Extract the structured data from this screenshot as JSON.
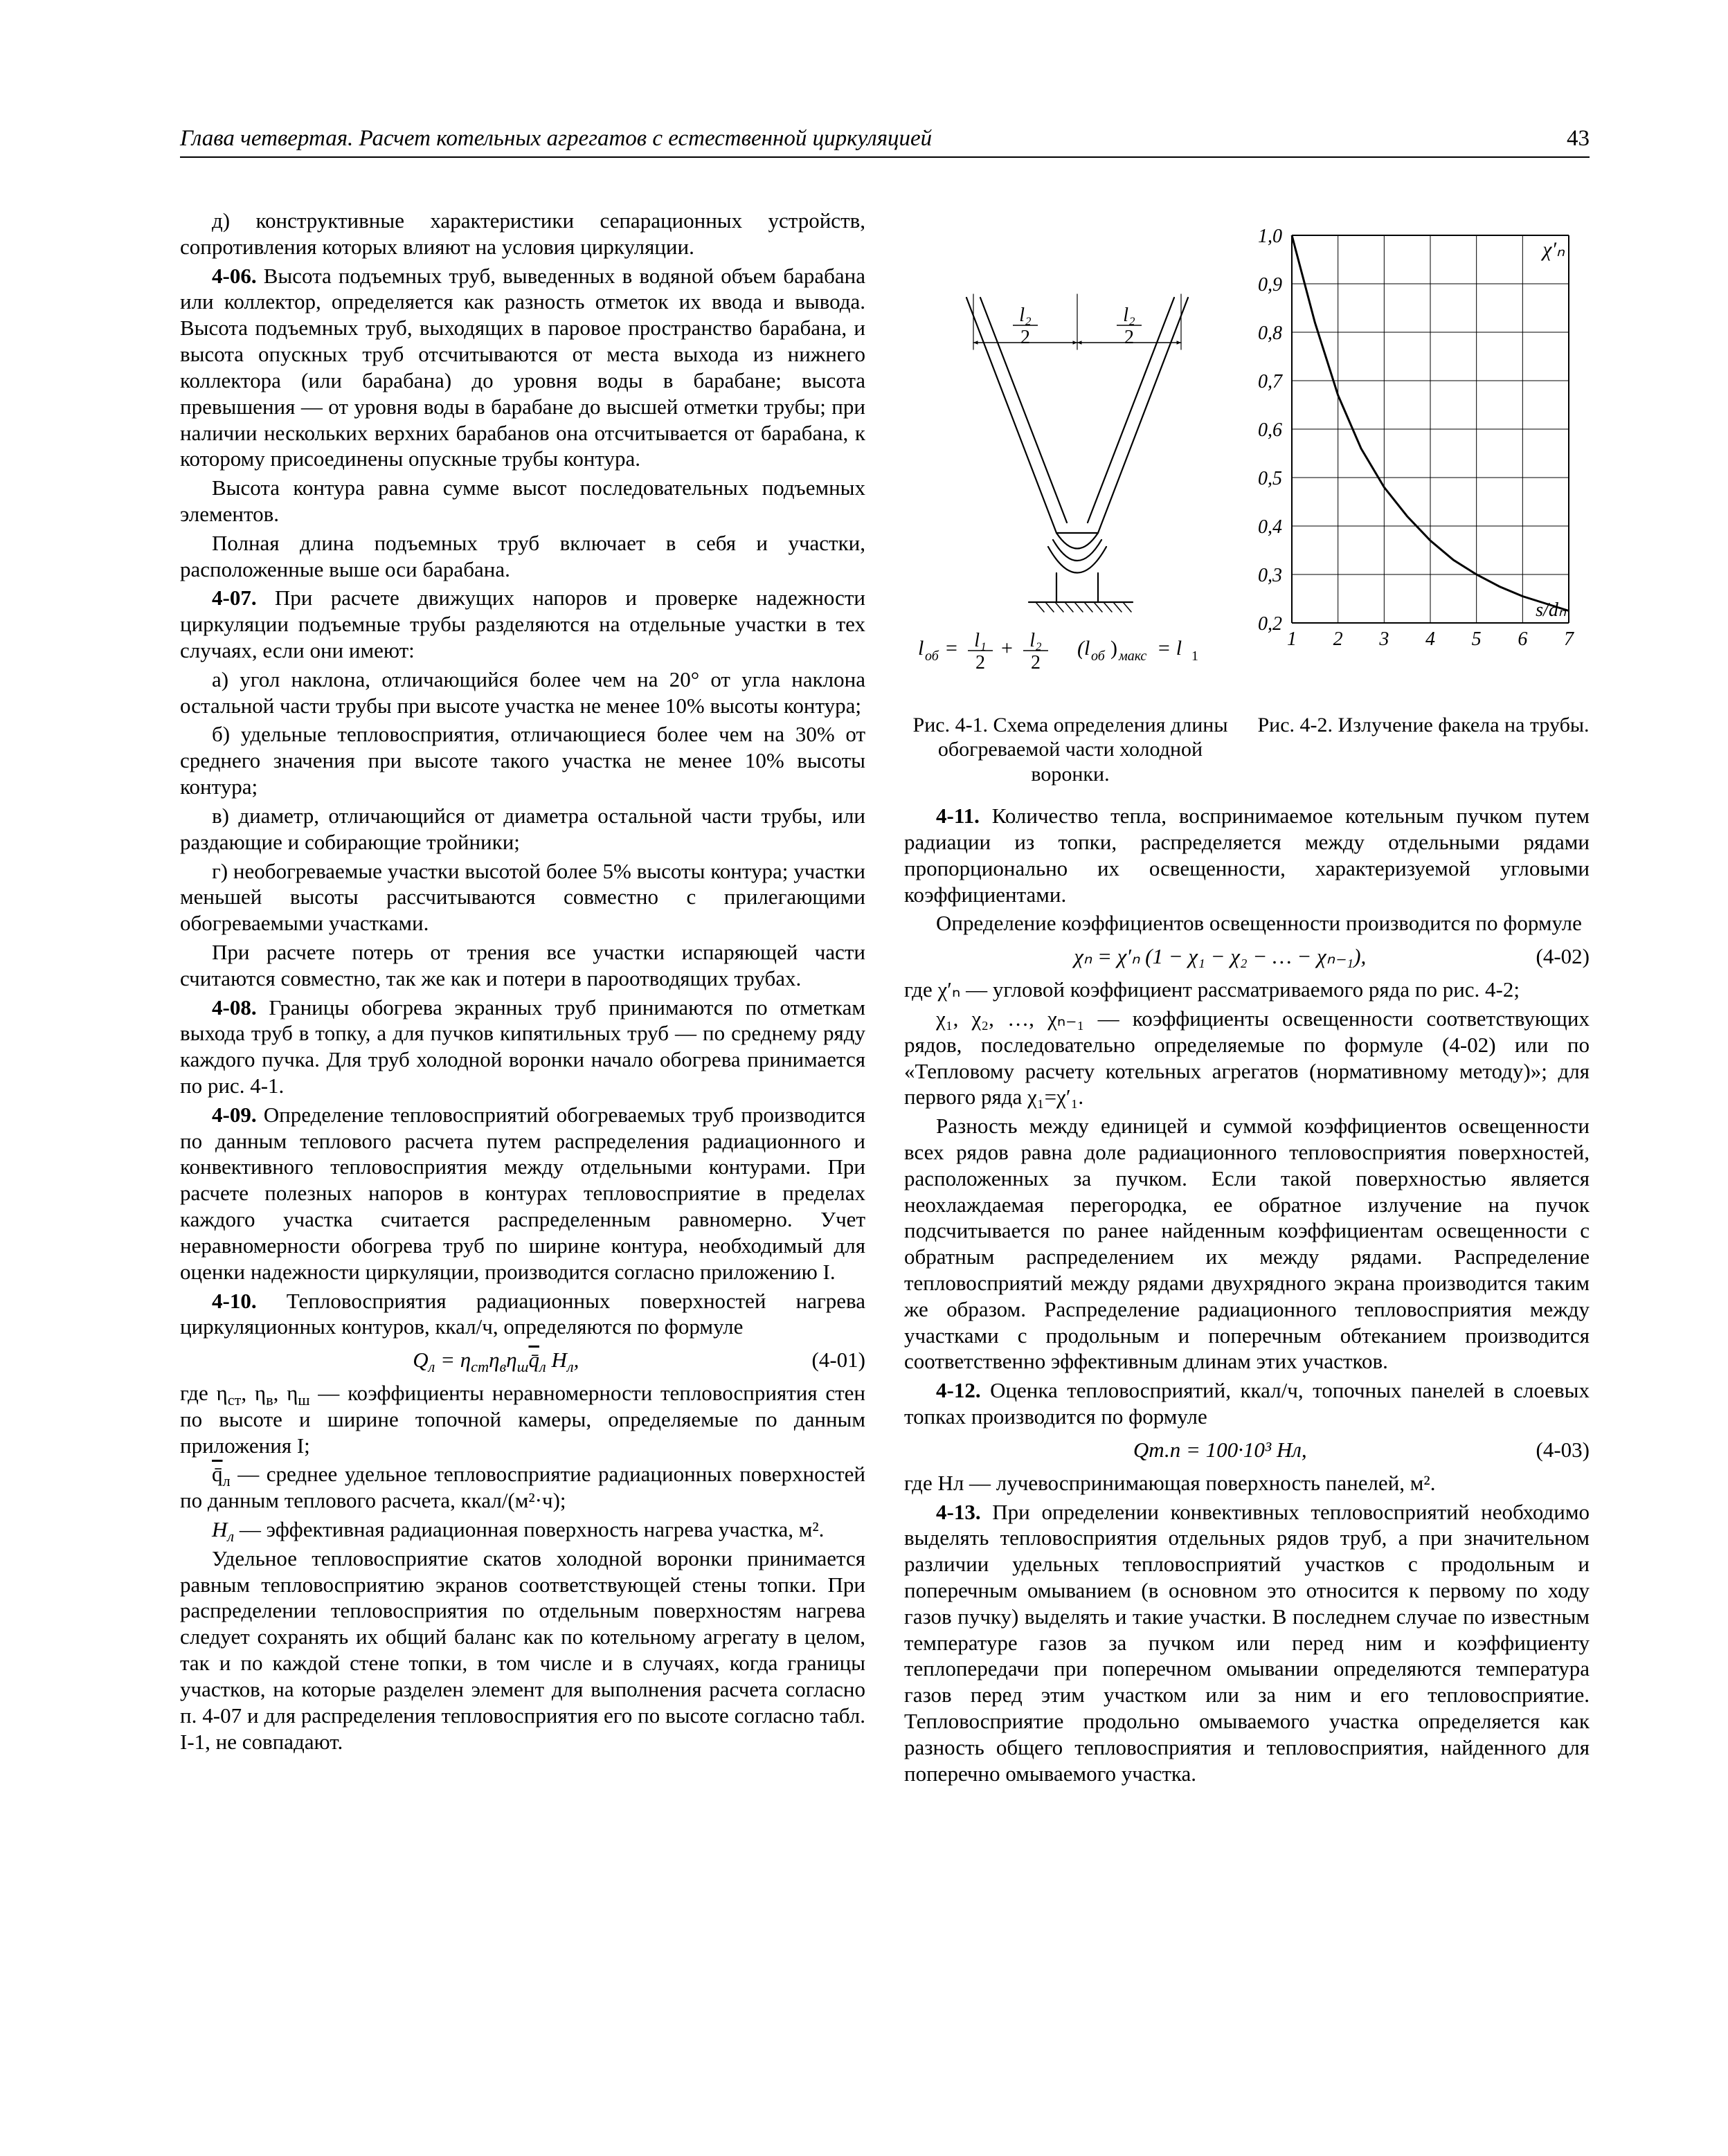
{
  "page": {
    "running_head": "Глава четвертая. Расчет котельных агрегатов с естественной циркуляцией",
    "page_number": "43"
  },
  "left": {
    "p_d": "д) конструктивные характеристики сепарационных устройств, сопротивления которых влияют на условия циркуляции.",
    "s406": "4-06.",
    "p406": " Высота подъемных труб, выведенных в водяной объем барабана или коллектор, определяется как разность отметок их ввода и вывода. Высота подъемных труб, выходящих в паровое пространство барабана, и высота опускных труб отсчитываются от места выхода из нижнего коллектора (или барабана) до уровня воды в барабане; высота превышения — от уровня воды в барабане до высшей отметки трубы; при наличии нескольких верхних барабанов она отсчитывается от барабана, к которому присоединены опускные трубы контура.",
    "p406b": "Высота контура равна сумме высот последовательных подъемных элементов.",
    "p406c": "Полная длина подъемных труб включает в себя и участки, расположенные выше оси барабана.",
    "s407": "4-07.",
    "p407": " При расчете движущих напоров и проверке надежности циркуляции подъемные трубы разделяются на отдельные участки в тех случаях, если они имеют:",
    "p407a": "а) угол наклона, отличающийся более чем на 20° от угла наклона остальной части трубы при высоте участка не менее 10% высоты контура;",
    "p407b": "б) удельные тепловосприятия, отличающиеся более чем на 30% от среднего значения при высоте такого участка не менее 10% высоты контура;",
    "p407c": "в) диаметр, отличающийся от диаметра остальной части трубы, или раздающие и собирающие тройники;",
    "p407d": "г) необогреваемые участки высотой более 5% высоты контура; участки меньшей высоты рассчитываются совместно с прилегающими обогреваемыми участками.",
    "p407e": "При расчете потерь от трения все участки испаряющей части считаются совместно, так же как и потери в пароотводящих трубах.",
    "s408": "4-08.",
    "p408": " Границы обогрева экранных труб принимаются по отметкам выхода труб в топку, а для пучков кипятильных труб — по среднему ряду каждого пучка. Для труб холодной воронки начало обогрева принимается по рис. 4-1.",
    "s409": "4-09.",
    "p409": " Определение тепловосприятий обогреваемых труб производится по данным теплового расчета путем распределения радиационного и конвективного тепловосприятия между отдельными контурами. При расчете полезных напоров в контурах тепловосприятие в пределах каждого участка считается распределенным равномерно. Учет неравномерности обогрева труб по ширине контура, необходимый для оценки надежности циркуляции, производится согласно приложению I.",
    "s410": "4-10.",
    "p410": " Тепловосприятия радиационных поверхностей нагрева циркуляционных контуров, ккал/ч, определяются по формуле",
    "eq401": "Q",
    "eq401_sub": "л",
    "eq401_rhs": " = η",
    "eq401_st": "ст",
    "eq401_mid": "η",
    "eq401_v": "в",
    "eq401_mid2": "η",
    "eq401_sh": "ш",
    "eq401_q": "q̄",
    "eq401_ql": "л",
    "eq401_H": " H",
    "eq401_Hl": "л",
    "eq401_tail": ",",
    "eq401_num": "(4-01)",
    "p410b_lead": "где η",
    "p410b": ", η",
    "p410b_tail": " — коэффициенты неравномерности тепловосприятия стен по высоте и ширине топочной камеры, определяемые по данным приложения I;",
    "p410c_lead": "q̄",
    "p410c": " — среднее удельное тепловосприятие радиационных поверхностей по данным теплового расчета, ккал/(м²·ч);",
    "p410d_lead": "H",
    "p410d": " — эффективная радиационная поверхность нагрева участка, м².",
    "p410e": "Удельное тепловосприятие скатов холодной воронки принимается равным тепловосприятию экранов соответствующей стены топки. При распределении тепловосприятия по отдельным поверхностям нагрева следует сохранять их общий баланс как по котельному агрегату в целом, так и по каждой стене топки, в том числе и в случаях, когда границы участков, на которые разделен элемент для выполнения расчета согласно п. 4-07 и для распределения тепловосприятия его по высоте согласно табл. I-1, не совпадают."
  },
  "figs": {
    "cap41": "Рис. 4-1. Схема определения длины обогреваемой части холодной воронки.",
    "cap42": "Рис. 4-2. Излучение факела на трубы.",
    "fig41": {
      "formula_l": "l",
      "formula_ob": "об",
      "formula_eq": " = ",
      "formula_mid": " + ",
      "formula_paren_l": "(l",
      "formula_paren_sub": "об",
      "formula_paren_r": ")",
      "formula_max": "макс",
      "formula_tail": " = l",
      "formula_tail_sub": "1",
      "half1_num": "l₁",
      "half1_den": "2",
      "half2_num": "l₂",
      "half2_den": "2",
      "top_l2a": "l₂",
      "top_l2b": "l₂",
      "top_2a": "2",
      "top_2b": "2"
    },
    "fig42": {
      "ylabel": "χ′ₙ",
      "xlabel": "s/dₙ",
      "yticks": [
        "1,0",
        "0,9",
        "0,8",
        "0,7",
        "0,6",
        "0,5",
        "0,4",
        "0,3",
        "0,2"
      ],
      "xticks": [
        "1",
        "2",
        "3",
        "4",
        "5",
        "6",
        "7"
      ],
      "curve": [
        [
          1,
          1.0
        ],
        [
          1.5,
          0.82
        ],
        [
          2,
          0.67
        ],
        [
          2.5,
          0.56
        ],
        [
          3,
          0.48
        ],
        [
          3.5,
          0.42
        ],
        [
          4,
          0.37
        ],
        [
          4.5,
          0.33
        ],
        [
          5,
          0.3
        ],
        [
          5.5,
          0.275
        ],
        [
          6,
          0.255
        ],
        [
          6.5,
          0.24
        ],
        [
          7,
          0.225
        ]
      ],
      "axis_color": "#000000",
      "grid_color": "#000000",
      "line_width_axis": 2,
      "line_width_grid": 1,
      "line_width_curve": 3,
      "font_size_tick": 28,
      "plot_bg": "#ffffff"
    }
  },
  "right": {
    "s411": "4-11.",
    "p411": " Количество тепла, воспринимаемое котельным пучком путем радиации из топки, распределяется между отдельными рядами пропорционально их освещенности, характеризуемой угловыми коэффициентами.",
    "p411b": "Определение коэффициентов освещенности производится по формуле",
    "eq402": "χₙ = χ′ₙ (1 − χ₁ − χ₂ − … − χₙ₋₁),",
    "eq402_num": "(4-02)",
    "p411c": "где χ′ₙ — угловой коэффициент рассматриваемого ряда по рис. 4-2;",
    "p411d": "χ₁, χ₂, …, χₙ₋₁ — коэффициенты освещенности соответствующих рядов, последовательно определяемые по формуле (4-02) или по «Тепловому расчету котельных агрегатов (нормативному методу)»; для первого ряда χ₁=χ′₁.",
    "p411e": "Разность между единицей и суммой коэффициентов освещенности всех рядов равна доле радиационного тепловосприятия поверхностей, расположенных за пучком. Если такой поверхностью является неохлаждаемая перегородка, ее обратное излучение на пучок подсчитывается по ранее найденным коэффициентам освещенности с обратным распределением их между рядами. Распределение тепловосприятий между рядами двухрядного экрана производится таким же образом. Распределение радиационного тепловосприятия между участками с продольным и поперечным обтеканием производится соответственно эффективным длинам этих участков.",
    "s412": "4-12.",
    "p412": " Оценка тепловосприятий, ккал/ч, топочных панелей в слоевых топках производится по формуле",
    "eq403": "Qт.п = 100·10³ Hл,",
    "eq403_num": "(4-03)",
    "p412b": "где Hл — лучевоспринимающая поверхность панелей, м².",
    "s413": "4-13.",
    "p413": " При определении конвективных тепловосприятий необходимо выделять тепловосприятия отдельных рядов труб, а при значительном различии удельных тепловосприятий участков с продольным и поперечным омыванием (в основном это относится к первому по ходу газов пучку) выделять и такие участки. В последнем случае по известным температуре газов за пучком или перед ним и коэффициенту теплопередачи при поперечном омывании определяются температура газов перед этим участком или за ним и его тепловосприятие. Тепловосприятие продольно омываемого участка определяется как разность общего тепловосприятия и тепловосприятия, найденного для поперечно омываемого участка."
  }
}
